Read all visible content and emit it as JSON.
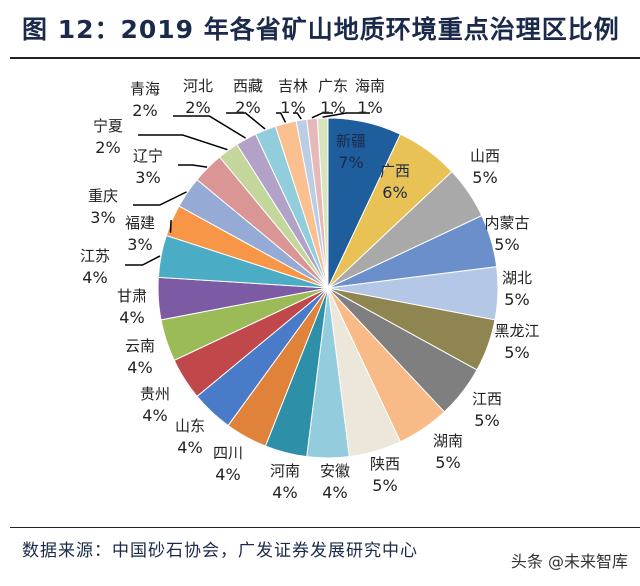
{
  "title": "图 12：2019 年各省矿山地质环境重点治理区比例",
  "source": "数据来源：中国砂石协会，广发证券发展研究中心",
  "watermark": "头条 @未来智库",
  "chart_data": {
    "type": "pie",
    "title": "图 12：2019 年各省矿山地质环境重点治理区比例",
    "start": "top, clockwise",
    "categories": [
      "新疆",
      "广西",
      "山西",
      "内蒙古",
      "湖北",
      "黑龙江",
      "江西",
      "湖南",
      "陕西",
      "安徽",
      "河南",
      "四川",
      "山东",
      "贵州",
      "云南",
      "甘肃",
      "江苏",
      "福建",
      "重庆",
      "辽宁",
      "宁夏",
      "青海",
      "河北",
      "西藏",
      "吉林",
      "广东",
      "海南"
    ],
    "values": [
      7,
      6,
      5,
      5,
      5,
      5,
      5,
      5,
      5,
      4,
      4,
      4,
      4,
      4,
      4,
      4,
      4,
      3,
      3,
      3,
      2,
      2,
      2,
      2,
      1,
      1,
      1
    ],
    "unit": "%",
    "colors": [
      "#1f5e9c",
      "#e8c255",
      "#a9a9a9",
      "#6b8fcb",
      "#b4c7e7",
      "#8e8550",
      "#7f7f7f",
      "#f8ba86",
      "#ede7db",
      "#93cddd",
      "#2e90a8",
      "#e0823a",
      "#4a7bc8",
      "#c0474a",
      "#9bbb59",
      "#7c5ba4",
      "#4bacc6",
      "#f79646",
      "#95abd5",
      "#d99694",
      "#c3d69b",
      "#b3a2c7",
      "#92cddc",
      "#fac090",
      "#b9cde5",
      "#e6b9b8",
      "#d7e4bd"
    ],
    "legend": "none (data labels)"
  }
}
